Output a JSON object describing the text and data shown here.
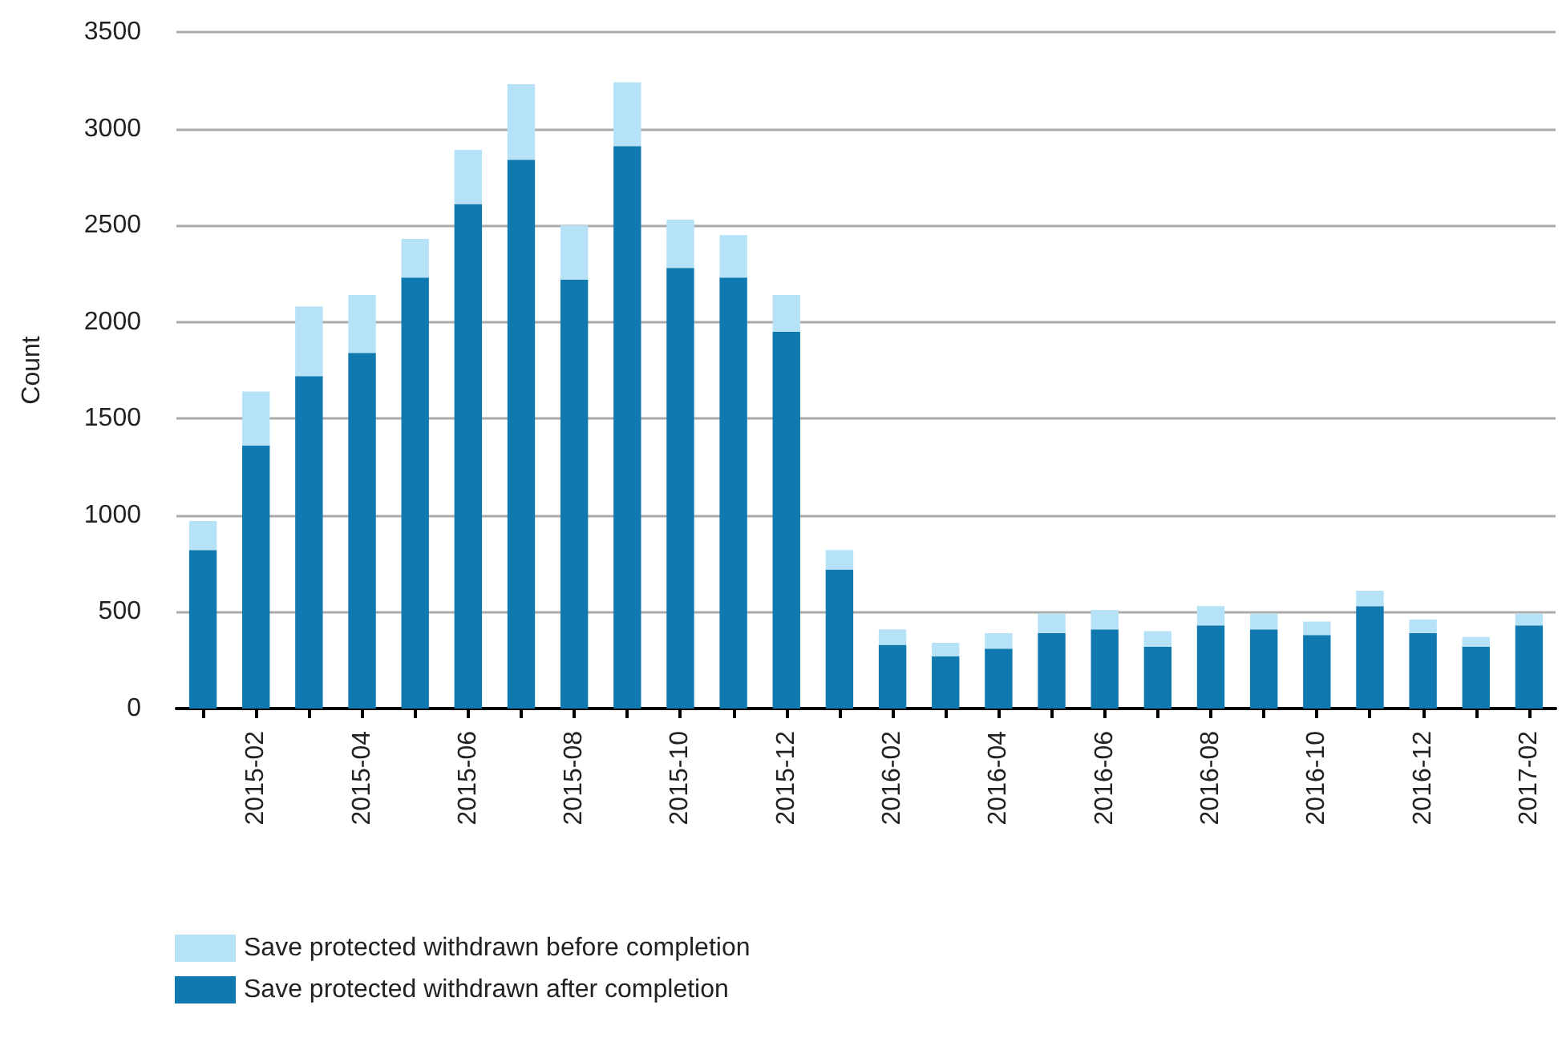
{
  "chart_data": {
    "type": "bar",
    "stacked": true,
    "ylabel": "Count",
    "categories": [
      null,
      "2015-02",
      null,
      "2015-04",
      null,
      "2015-06",
      null,
      "2015-08",
      null,
      "2015-10",
      null,
      "2015-12",
      null,
      "2016-02",
      null,
      "2016-04",
      null,
      "2016-06",
      null,
      "2016-08",
      null,
      "2016-10",
      null,
      "2016-12",
      null,
      "2017-02"
    ],
    "series": [
      {
        "name": "Save protected withdrawn after completion",
        "color": "#107ab0",
        "values": [
          820,
          1360,
          1720,
          1840,
          2230,
          2610,
          2840,
          2220,
          2910,
          2280,
          2230,
          1950,
          720,
          330,
          270,
          310,
          390,
          410,
          320,
          430,
          410,
          380,
          530,
          390,
          320,
          430
        ]
      },
      {
        "name": "Save protected withdrawn before completion",
        "color": "#b5e2f7",
        "values": [
          150,
          280,
          360,
          300,
          200,
          280,
          390,
          280,
          330,
          250,
          220,
          190,
          100,
          80,
          70,
          80,
          100,
          100,
          80,
          100,
          80,
          70,
          80,
          70,
          50,
          60
        ]
      }
    ],
    "ylim": [
      0,
      3500
    ],
    "yticks": [
      0,
      500,
      1000,
      1500,
      2000,
      2500,
      3000,
      3500
    ],
    "grid": "y",
    "legend": "bottom left"
  }
}
